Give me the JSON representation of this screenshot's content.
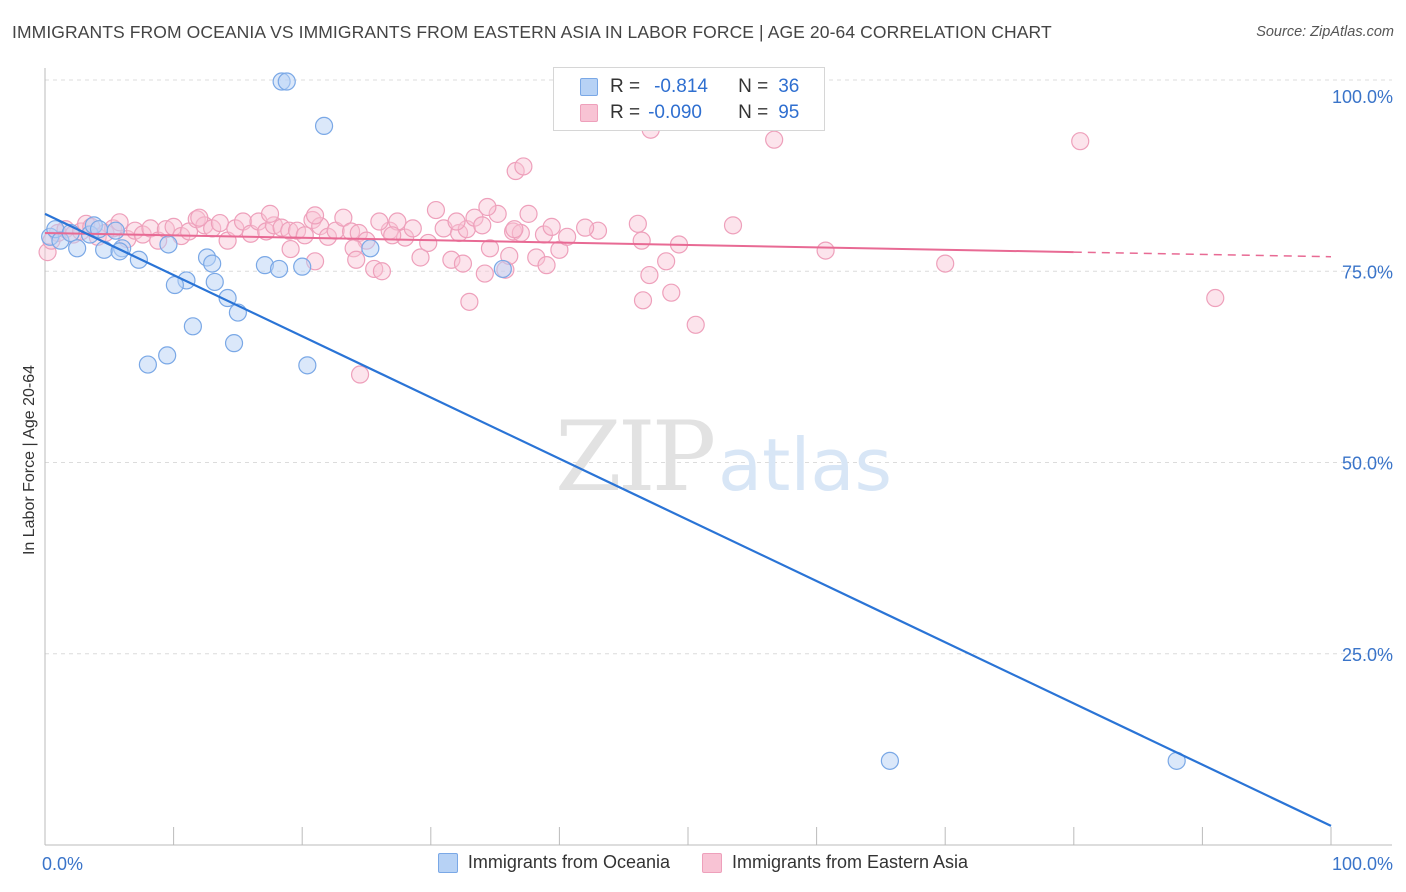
{
  "title": "IMMIGRANTS FROM OCEANIA VS IMMIGRANTS FROM EASTERN ASIA IN LABOR FORCE | AGE 20-64 CORRELATION CHART",
  "source": "Source: ZipAtlas.com",
  "watermark": {
    "zip": "ZIP",
    "atlas": "atlas"
  },
  "colors": {
    "oceania_fill": "#b7d2f5",
    "oceania_stroke": "#7aa8e6",
    "oceania_line": "#2a74d6",
    "easia_fill": "#f8c3d4",
    "easia_stroke": "#eea0bb",
    "easia_line": "#e86a94",
    "tick_label": "#3a74c9",
    "grid": "#dcdcdc"
  },
  "legend": {
    "rows": [
      {
        "r_label": "R =",
        "r_value": "-0.814",
        "n_label": "N =",
        "n_value": "36"
      },
      {
        "r_label": "R =",
        "r_value": "-0.090",
        "n_label": "N =",
        "n_value": "95"
      }
    ]
  },
  "bottom_legend": [
    "Immigrants from Oceania",
    "Immigrants from Eastern Asia"
  ],
  "chart_data": {
    "type": "scatter",
    "ylabel": "In Labor Force | Age 20-64",
    "xlim": [
      0,
      100
    ],
    "ylim": [
      0,
      100
    ],
    "x_tick_labels": [
      {
        "value": 0,
        "label": "0.0%"
      },
      {
        "value": 100,
        "label": "100.0%"
      }
    ],
    "y_tick_labels": [
      {
        "value": 25,
        "label": "25.0%"
      },
      {
        "value": 50,
        "label": "50.0%"
      },
      {
        "value": 75,
        "label": "75.0%"
      },
      {
        "value": 100,
        "label": "100.0%"
      }
    ],
    "grid": true,
    "legend_position": "top-center",
    "series": [
      {
        "name": "Immigrants from Oceania",
        "r": -0.814,
        "n": 36,
        "trend": {
          "x": [
            0,
            100
          ],
          "y": [
            82.5,
            2.5
          ]
        },
        "points": [
          [
            0.4,
            79.5
          ],
          [
            0.8,
            80.5
          ],
          [
            1.2,
            79.0
          ],
          [
            2.0,
            80.0
          ],
          [
            2.5,
            78.0
          ],
          [
            3.5,
            79.8
          ],
          [
            3.8,
            81.0
          ],
          [
            4.2,
            80.5
          ],
          [
            5.5,
            80.3
          ],
          [
            6.0,
            78.0
          ],
          [
            7.3,
            76.5
          ],
          [
            4.6,
            77.8
          ],
          [
            5.8,
            77.6
          ],
          [
            9.6,
            78.5
          ],
          [
            11.0,
            73.8
          ],
          [
            13.2,
            73.6
          ],
          [
            10.1,
            73.2
          ],
          [
            14.2,
            71.5
          ],
          [
            15.0,
            69.6
          ],
          [
            17.1,
            75.8
          ],
          [
            18.2,
            75.3
          ],
          [
            20.0,
            75.6
          ],
          [
            12.6,
            76.8
          ],
          [
            13.0,
            76.0
          ],
          [
            11.5,
            67.8
          ],
          [
            8.0,
            62.8
          ],
          [
            9.5,
            64.0
          ],
          [
            14.7,
            65.6
          ],
          [
            20.4,
            62.7
          ],
          [
            25.3,
            78.0
          ],
          [
            35.6,
            75.3
          ],
          [
            18.4,
            99.8
          ],
          [
            18.8,
            99.8
          ],
          [
            21.7,
            94.0
          ],
          [
            65.7,
            11.0
          ],
          [
            88.0,
            11.0
          ]
        ]
      },
      {
        "name": "Immigrants from Eastern Asia",
        "r": -0.09,
        "n": 95,
        "trend": {
          "x": [
            0,
            80
          ],
          "y": [
            80,
            77.5
          ]
        },
        "trend_dashed": {
          "x": [
            80,
            100
          ],
          "y": [
            77.5,
            76.9
          ]
        },
        "points": [
          [
            0.2,
            77.5
          ],
          [
            0.5,
            79.0
          ],
          [
            1.0,
            80.0
          ],
          [
            1.6,
            80.5
          ],
          [
            2.2,
            79.8
          ],
          [
            2.8,
            80.2
          ],
          [
            3.2,
            81.2
          ],
          [
            3.6,
            80.8
          ],
          [
            4.1,
            79.5
          ],
          [
            4.7,
            80.0
          ],
          [
            5.3,
            80.6
          ],
          [
            5.8,
            81.4
          ],
          [
            6.4,
            79.2
          ],
          [
            7.0,
            80.3
          ],
          [
            7.6,
            79.8
          ],
          [
            8.2,
            80.6
          ],
          [
            8.8,
            79.0
          ],
          [
            9.4,
            80.5
          ],
          [
            10.0,
            80.8
          ],
          [
            10.6,
            79.6
          ],
          [
            11.2,
            80.2
          ],
          [
            11.8,
            81.8
          ],
          [
            12.4,
            81.0
          ],
          [
            13.0,
            80.6
          ],
          [
            13.6,
            81.3
          ],
          [
            14.2,
            79.0
          ],
          [
            14.8,
            80.6
          ],
          [
            15.4,
            81.5
          ],
          [
            16.0,
            79.9
          ],
          [
            16.6,
            81.5
          ],
          [
            17.2,
            80.2
          ],
          [
            17.8,
            81.0
          ],
          [
            18.4,
            80.7
          ],
          [
            19.0,
            80.3
          ],
          [
            19.6,
            80.3
          ],
          [
            20.2,
            79.7
          ],
          [
            20.8,
            81.7
          ],
          [
            21.4,
            80.9
          ],
          [
            22.0,
            79.5
          ],
          [
            22.6,
            80.3
          ],
          [
            23.2,
            82.0
          ],
          [
            23.8,
            80.2
          ],
          [
            24.4,
            80.0
          ],
          [
            25.0,
            79.0
          ],
          [
            25.6,
            75.3
          ],
          [
            26.2,
            75.0
          ],
          [
            26.8,
            80.3
          ],
          [
            27.4,
            81.5
          ],
          [
            28.0,
            79.4
          ],
          [
            28.6,
            80.6
          ],
          [
            29.2,
            76.8
          ],
          [
            29.8,
            78.7
          ],
          [
            30.4,
            83.0
          ],
          [
            31.0,
            80.6
          ],
          [
            31.6,
            76.5
          ],
          [
            32.2,
            80.0
          ],
          [
            32.8,
            80.5
          ],
          [
            33.4,
            82.0
          ],
          [
            34.0,
            81.0
          ],
          [
            34.6,
            78.0
          ],
          [
            35.2,
            82.5
          ],
          [
            35.8,
            75.2
          ],
          [
            36.4,
            80.2
          ],
          [
            37.0,
            80.0
          ],
          [
            37.6,
            82.5
          ],
          [
            38.2,
            76.8
          ],
          [
            38.8,
            79.8
          ],
          [
            39.4,
            80.8
          ],
          [
            40.0,
            77.8
          ],
          [
            40.6,
            79.5
          ],
          [
            12.0,
            82.0
          ],
          [
            17.5,
            82.5
          ],
          [
            21.0,
            82.3
          ],
          [
            26.0,
            81.5
          ],
          [
            32.0,
            81.5
          ],
          [
            36.5,
            80.5
          ],
          [
            43.0,
            80.3
          ],
          [
            21.0,
            76.3
          ],
          [
            24.0,
            78.0
          ],
          [
            27.0,
            79.7
          ],
          [
            32.5,
            76.0
          ],
          [
            34.2,
            74.7
          ],
          [
            39.0,
            75.8
          ],
          [
            42.0,
            80.7
          ],
          [
            46.4,
            79.0
          ],
          [
            47.0,
            74.5
          ],
          [
            48.7,
            72.2
          ],
          [
            49.3,
            78.5
          ],
          [
            50.6,
            68.0
          ],
          [
            53.5,
            81.0
          ],
          [
            56.7,
            92.2
          ],
          [
            60.7,
            77.7
          ],
          [
            70.0,
            76.0
          ],
          [
            80.5,
            92.0
          ],
          [
            91.0,
            71.5
          ]
        ]
      }
    ],
    "extra_easia_points": [
      [
        36.6,
        88.1
      ],
      [
        37.2,
        88.7
      ],
      [
        34.4,
        83.4
      ],
      [
        36.1,
        77.0
      ],
      [
        33.0,
        71.0
      ],
      [
        47.1,
        93.5
      ],
      [
        46.1,
        81.2
      ],
      [
        48.3,
        76.3
      ],
      [
        46.5,
        71.2
      ],
      [
        24.5,
        61.5
      ],
      [
        19.1,
        77.9
      ],
      [
        24.2,
        76.5
      ]
    ]
  }
}
